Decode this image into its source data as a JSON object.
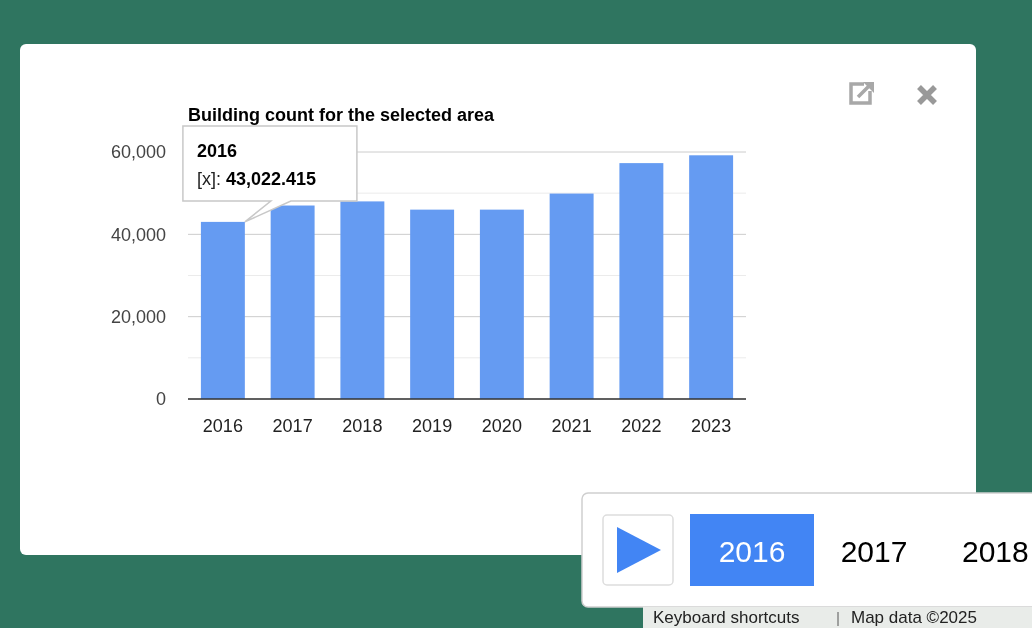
{
  "chart_data": {
    "type": "bar",
    "title": "Building count for the selected area",
    "categories": [
      "2016",
      "2017",
      "2018",
      "2019",
      "2020",
      "2021",
      "2022",
      "2023"
    ],
    "values": [
      43022.415,
      47000,
      48000,
      46000,
      46000,
      49900,
      57300,
      59200
    ],
    "color": "#659bf2",
    "ylim": [
      0,
      60000
    ],
    "yticks": [
      0,
      {
        "value": 10000,
        "label": null
      },
      {
        "value": 20000,
        "label": "20,000"
      },
      {
        "value": 30000,
        "label": null
      },
      {
        "value": 40000,
        "label": "40,000"
      },
      {
        "value": 50000,
        "label": null
      },
      {
        "value": 60000,
        "label": "60,000"
      }
    ],
    "grid": "y",
    "annotations": [
      {
        "text": "2016\n[x]: 43,022.415",
        "x": "2016",
        "y": 43022.415
      },
      "2016",
      "2017",
      "2018",
      "Keyboard shortcuts",
      "Map data ©2025"
    ]
  }
}
